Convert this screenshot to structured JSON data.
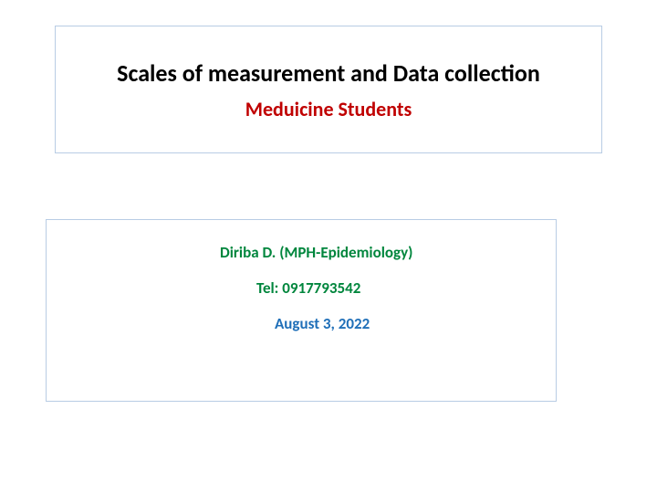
{
  "title_box": {
    "main_title": "Scales of measurement and Data collection",
    "subtitle": "Meduicine  Students",
    "border_color": "#b8cce4",
    "title_color": "#000000",
    "subtitle_color": "#c00000",
    "title_fontsize": 26,
    "subtitle_fontsize": 22
  },
  "info_box": {
    "author": "Diriba D. (MPH-Epidemiology)",
    "tel": "Tel: 0917793542",
    "date": "August  3, 2022",
    "border_color": "#b8cce4",
    "author_color": "#00863d",
    "tel_color": "#00863d",
    "date_color": "#1f6fb8",
    "fontsize": 17
  },
  "background_color": "#ffffff"
}
